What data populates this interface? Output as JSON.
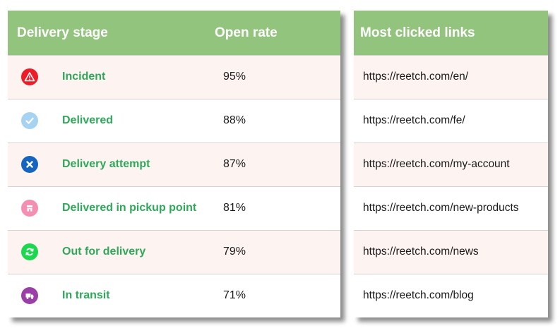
{
  "stages_table": {
    "header": {
      "stage": "Delivery stage",
      "rate": "Open rate"
    },
    "rows": [
      {
        "label": "Incident",
        "rate": "95%",
        "icon": "warning-icon",
        "icon_color": "#ee1c25"
      },
      {
        "label": "Delivered",
        "rate": "88%",
        "icon": "check-icon",
        "icon_color": "#a6d3f2"
      },
      {
        "label": "Delivery attempt",
        "rate": "87%",
        "icon": "x-icon",
        "icon_color": "#1565c0"
      },
      {
        "label": "Delivered in pickup point",
        "rate": "81%",
        "icon": "store-icon",
        "icon_color": "#f48fb1"
      },
      {
        "label": "Out for delivery",
        "rate": "79%",
        "icon": "refresh-icon",
        "icon_color": "#1dd74f"
      },
      {
        "label": "In transit",
        "rate": "71%",
        "icon": "truck-icon",
        "icon_color": "#9b3fa8"
      }
    ]
  },
  "links_table": {
    "header": "Most clicked links",
    "rows": [
      "https://reetch.com/en/",
      "https://reetch.com/fe/",
      "https://reetch.com/my-account",
      "https://reetch.com/new-products",
      "https://reetch.com/news",
      "https://reetch.com/blog"
    ]
  },
  "colors": {
    "header_bg": "#92c47d",
    "header_text": "#ffffff",
    "stage_label": "#2fa85a",
    "alt_row_bg": "#fdf3f1"
  }
}
